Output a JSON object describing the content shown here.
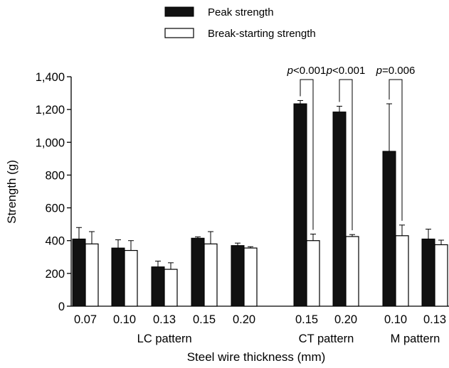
{
  "chart_data": {
    "type": "bar",
    "ylabel": "Strength (g)",
    "xlabel": "Steel wire thickness (mm)",
    "ylim": [
      0,
      1400
    ],
    "yticks": [
      0,
      200,
      400,
      600,
      800,
      1000,
      1200,
      1400
    ],
    "ytick_labels": [
      "0",
      "200",
      "400",
      "600",
      "800",
      "1,000",
      "1,200",
      "1,400"
    ],
    "legend_position": "top-center",
    "grid": false,
    "colors": {
      "peak": "#111111",
      "break": "#ffffff"
    },
    "series": [
      {
        "name": "Peak strength"
      },
      {
        "name": "Break-starting strength"
      }
    ],
    "groups": [
      {
        "label": "LC pattern",
        "categories": [
          {
            "label": "0.07",
            "peak": 410,
            "peak_err": 70,
            "break": 380,
            "break_err": 75
          },
          {
            "label": "0.10",
            "peak": 355,
            "peak_err": 50,
            "break": 340,
            "break_err": 60
          },
          {
            "label": "0.13",
            "peak": 240,
            "peak_err": 35,
            "break": 225,
            "break_err": 40
          },
          {
            "label": "0.15",
            "peak": 415,
            "peak_err": 8,
            "break": 380,
            "break_err": 75
          },
          {
            "label": "0.20",
            "peak": 370,
            "peak_err": 15,
            "break": 355,
            "break_err": 8
          }
        ]
      },
      {
        "label": "CT pattern",
        "categories": [
          {
            "label": "0.15",
            "peak": 1235,
            "peak_err": 20,
            "break": 400,
            "break_err": 40
          },
          {
            "label": "0.20",
            "peak": 1185,
            "peak_err": 35,
            "break": 425,
            "break_err": 12
          }
        ]
      },
      {
        "label": "M pattern",
        "categories": [
          {
            "label": "0.10",
            "peak": 945,
            "peak_err": 290,
            "break": 430,
            "break_err": 65
          },
          {
            "label": "0.13",
            "peak": 410,
            "peak_err": 60,
            "break": 375,
            "break_err": 28
          }
        ]
      }
    ],
    "annotations": [
      {
        "group": 1,
        "index": 0,
        "p_label": "p",
        "text": "<0.001"
      },
      {
        "group": 1,
        "index": 1,
        "p_label": "p",
        "text": "<0.001"
      },
      {
        "group": 2,
        "index": 0,
        "p_label": "p",
        "text": "=0.006"
      }
    ]
  }
}
